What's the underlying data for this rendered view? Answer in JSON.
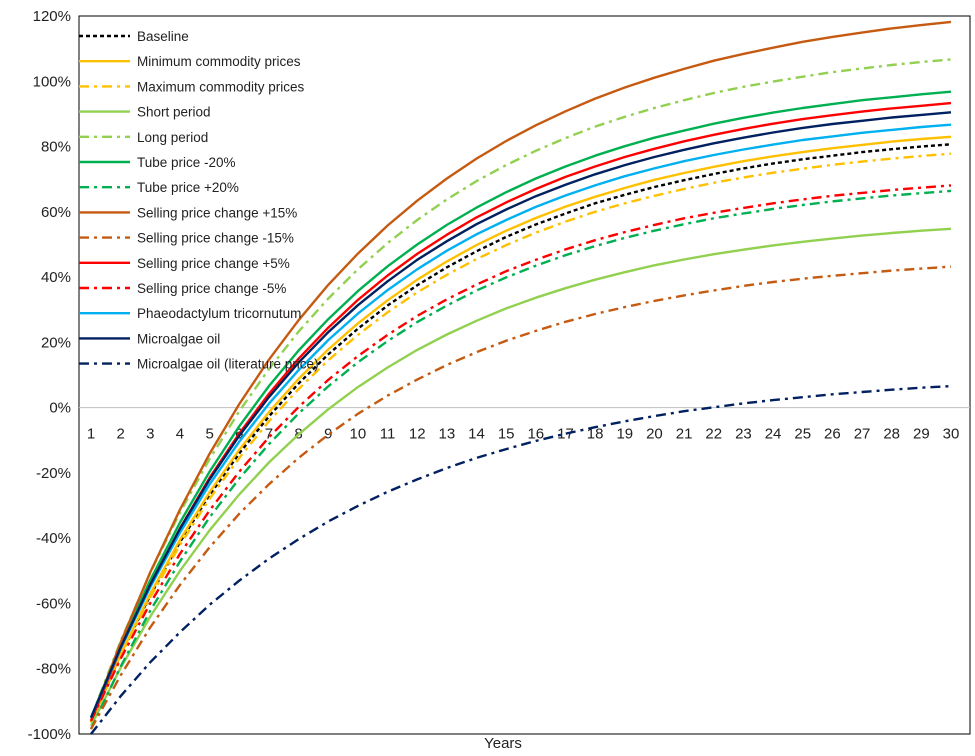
{
  "chart_data": {
    "type": "line",
    "title": "",
    "xlabel": "Years",
    "ylabel": "",
    "x": [
      1,
      2,
      3,
      4,
      5,
      6,
      7,
      8,
      9,
      10,
      11,
      12,
      13,
      14,
      15,
      16,
      17,
      18,
      19,
      20,
      21,
      22,
      23,
      24,
      25,
      26,
      27,
      28,
      29,
      30
    ],
    "xlim": [
      1,
      30
    ],
    "ylim": [
      -100,
      120
    ],
    "y_ticks": [
      -100,
      -80,
      -60,
      -40,
      -20,
      0,
      20,
      40,
      60,
      80,
      100,
      120
    ],
    "y_tick_labels": [
      "-100%",
      "-80%",
      "-60%",
      "-40%",
      "-20%",
      "0%",
      "20%",
      "40%",
      "60%",
      "80%",
      "100%",
      "120%"
    ],
    "x_tick_labels": [
      "1",
      "2",
      "3",
      "4",
      "5",
      "6",
      "7",
      "8",
      "9",
      "10",
      "11",
      "12",
      "13",
      "14",
      "15",
      "16",
      "17",
      "18",
      "19",
      "20",
      "21",
      "22",
      "23",
      "24",
      "25",
      "26",
      "27",
      "28",
      "29",
      "30"
    ],
    "legend_position": "top-left",
    "grid": false,
    "series": [
      {
        "name": "Baseline",
        "color": "#000000",
        "dash": "short-dash",
        "final": 80.7
      },
      {
        "name": "Minimum commodity prices",
        "color": "#FFC000",
        "dash": "solid",
        "final": 83
      },
      {
        "name": "Maximum commodity prices",
        "color": "#FFC000",
        "dash": "dash-dot",
        "final": 77.8
      },
      {
        "name": "Short period",
        "color": "#92D050",
        "dash": "solid",
        "final": 54.8
      },
      {
        "name": "Long period",
        "color": "#92D050",
        "dash": "dash-dot",
        "final": 106.7
      },
      {
        "name": "Tube price -20%",
        "color": "#00B050",
        "dash": "solid",
        "final": 96.8
      },
      {
        "name": "Tube price +20%",
        "color": "#00B050",
        "dash": "dash-dot",
        "final": 66.4
      },
      {
        "name": "Selling price change +15%",
        "color": "#C55A11",
        "dash": "solid",
        "final": 118.2
      },
      {
        "name": "Selling price change -15%",
        "color": "#C55A11",
        "dash": "dash-dot",
        "final": 43.2
      },
      {
        "name": "Selling price change +5%",
        "color": "#FF0000",
        "dash": "solid",
        "final": 93.3
      },
      {
        "name": "Selling price change -5%",
        "color": "#FF0000",
        "dash": "dash-dot",
        "final": 68.1
      },
      {
        "name": "Phaeodactylum tricornutum",
        "color": "#00B0F0",
        "dash": "solid",
        "final": 86.7
      },
      {
        "name": "Microalgae oil",
        "color": "#002060",
        "dash": "solid",
        "final": 90.5
      },
      {
        "name": "Microalgae oil (literature price)",
        "color": "#002060",
        "dash": "dash-dot",
        "final": 6.6
      }
    ]
  }
}
